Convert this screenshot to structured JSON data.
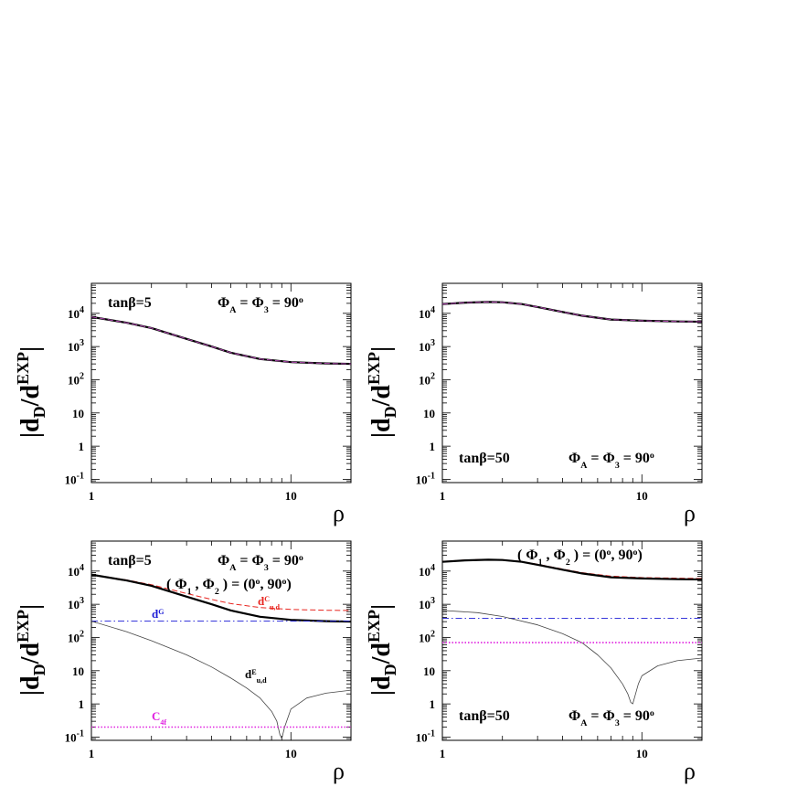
{
  "figure": {
    "ylabel_main": "|d",
    "ylabel_sub": "D",
    "ylabel_mid": "/d",
    "ylabel_sup": "EXP",
    "ylabel_end": "|",
    "xlabel": "ρ",
    "y_ticks": [
      {
        "value": 0.1,
        "base": "10",
        "exp": "-1"
      },
      {
        "value": 1,
        "base": "1",
        "exp": ""
      },
      {
        "value": 10,
        "base": "10",
        "exp": ""
      },
      {
        "value": 100,
        "base": "10",
        "exp": "2"
      },
      {
        "value": 1000,
        "base": "10",
        "exp": "3"
      },
      {
        "value": 10000,
        "base": "10",
        "exp": "4"
      }
    ],
    "x_ticks": [
      {
        "value": 1,
        "label": "1"
      },
      {
        "value": 10,
        "label": "10"
      }
    ]
  },
  "colors": {
    "total": "#000000",
    "dC": "#e8251f",
    "dG": "#1c1cd6",
    "dE": "#444444",
    "C4f": "#e020e0",
    "overlay": "#b048b0"
  },
  "chart_data": [
    {
      "type": "line",
      "panel": "top-left",
      "xscale": "log",
      "yscale": "log",
      "xlim": [
        1,
        20
      ],
      "ylim": [
        0.08,
        80000
      ],
      "annotations": {
        "tanb": "tanβ=5",
        "phi_main": "Φ",
        "phi_sub1": "A",
        "phi_mid": " = Φ",
        "phi_sub2": "3",
        "phi_tail": " = 90",
        "phi_deg": "o"
      },
      "series": [
        {
          "key": "total",
          "style": "solid-thick",
          "x": [
            1,
            1.5,
            2,
            3,
            4,
            5,
            7,
            10,
            15,
            20
          ],
          "y": [
            7800,
            5200,
            3600,
            1700,
            1000,
            650,
            420,
            340,
            310,
            300
          ]
        },
        {
          "key": "overlay",
          "style": "dashed",
          "x": [
            1,
            1.5,
            2,
            3,
            4,
            5,
            7,
            10,
            15,
            20
          ],
          "y": [
            7800,
            5200,
            3600,
            1700,
            1000,
            650,
            420,
            340,
            310,
            300
          ]
        }
      ]
    },
    {
      "type": "line",
      "panel": "top-right",
      "xscale": "log",
      "yscale": "log",
      "xlim": [
        1,
        20
      ],
      "ylim": [
        0.08,
        80000
      ],
      "annotations": {
        "tanb": "tanβ=50",
        "phi_main": "Φ",
        "phi_sub1": "A",
        "phi_mid": " = Φ",
        "phi_sub2": "3",
        "phi_tail": " = 90",
        "phi_deg": "o"
      },
      "series": [
        {
          "key": "total",
          "style": "solid-thick",
          "x": [
            1,
            1.3,
            1.7,
            2,
            2.5,
            3,
            4,
            5,
            7,
            10,
            15,
            20
          ],
          "y": [
            19000,
            21000,
            22000,
            21500,
            19000,
            15500,
            11000,
            8500,
            6500,
            6000,
            5700,
            5600
          ]
        },
        {
          "key": "overlay",
          "style": "dashed",
          "x": [
            1,
            1.3,
            1.7,
            2,
            2.5,
            3,
            4,
            5,
            7,
            10,
            15,
            20
          ],
          "y": [
            19000,
            21000,
            22000,
            21500,
            19000,
            15500,
            11000,
            8500,
            6500,
            6000,
            5700,
            5600
          ]
        }
      ]
    },
    {
      "type": "line",
      "panel": "bottom-left",
      "xscale": "log",
      "yscale": "log",
      "xlim": [
        1,
        20
      ],
      "ylim": [
        0.08,
        80000
      ],
      "annotations": {
        "tanb": "tanβ=5",
        "phi_main": "Φ",
        "phi_sub1": "A",
        "phi_mid": " = Φ",
        "phi_sub2": "3",
        "phi_tail": " = 90",
        "phi_deg": "o",
        "phi12_a": "( Φ",
        "phi12_s1": "1",
        "phi12_b": " , Φ",
        "phi12_s2": "2",
        "phi12_c": " ) = (0",
        "phi12_d": "o",
        "phi12_e": ", 90",
        "phi12_f": "o",
        "phi12_g": ")",
        "label_dG": "d",
        "label_dG_sup": "G",
        "label_dC": "d",
        "label_dC_sup": "C",
        "label_dC_sub": "u,d",
        "label_dE": "d",
        "label_dE_sup": "E",
        "label_dE_sub": "u,d",
        "label_C4f": "C",
        "label_C4f_sub": "4f"
      },
      "series": [
        {
          "key": "dC",
          "style": "dashed",
          "x": [
            1,
            1.5,
            2,
            3,
            4,
            5,
            7,
            10,
            15,
            20
          ],
          "y": [
            7900,
            5400,
            3900,
            2100,
            1400,
            1050,
            800,
            700,
            660,
            650
          ]
        },
        {
          "key": "total",
          "style": "solid-thick",
          "x": [
            1,
            1.5,
            2,
            3,
            4,
            5,
            7,
            10,
            15,
            20
          ],
          "y": [
            7800,
            5200,
            3600,
            1700,
            1000,
            650,
            420,
            340,
            310,
            300
          ]
        },
        {
          "key": "dG",
          "style": "dashdot",
          "x": [
            1,
            20
          ],
          "y": [
            310,
            310
          ]
        },
        {
          "key": "dE",
          "style": "solid-thin",
          "x": [
            1,
            1.5,
            2,
            3,
            4,
            5,
            6,
            7,
            8,
            8.5,
            8.8,
            9.0,
            9.3,
            10,
            12,
            15,
            20
          ],
          "y": [
            310,
            150,
            80,
            30,
            13,
            6,
            3,
            1.5,
            0.6,
            0.3,
            0.12,
            0.09,
            0.2,
            0.7,
            1.5,
            2.1,
            2.6
          ]
        },
        {
          "key": "C4f",
          "style": "dotted",
          "x": [
            1,
            20
          ],
          "y": [
            0.2,
            0.2
          ]
        }
      ]
    },
    {
      "type": "line",
      "panel": "bottom-right",
      "xscale": "log",
      "yscale": "log",
      "xlim": [
        1,
        20
      ],
      "ylim": [
        0.08,
        80000
      ],
      "annotations": {
        "tanb": "tanβ=50",
        "phi_main": "Φ",
        "phi_sub1": "A",
        "phi_mid": " = Φ",
        "phi_sub2": "3",
        "phi_tail": " = 90",
        "phi_deg": "o",
        "phi12_a": "( Φ",
        "phi12_s1": "1",
        "phi12_b": " , Φ",
        "phi12_s2": "2",
        "phi12_c": " ) = (0",
        "phi12_d": "o",
        "phi12_e": ", 90",
        "phi12_f": "o",
        "phi12_g": ")"
      },
      "series": [
        {
          "key": "dC",
          "style": "dashed",
          "x": [
            1,
            1.3,
            1.7,
            2,
            2.5,
            3,
            4,
            5,
            7,
            10,
            15,
            20
          ],
          "y": [
            19500,
            21500,
            22500,
            22000,
            19500,
            16000,
            11500,
            9000,
            7000,
            6400,
            6100,
            6000
          ]
        },
        {
          "key": "total",
          "style": "solid-thick",
          "x": [
            1,
            1.3,
            1.7,
            2,
            2.5,
            3,
            4,
            5,
            7,
            10,
            15,
            20
          ],
          "y": [
            19000,
            21000,
            22000,
            21500,
            19000,
            15500,
            11000,
            8500,
            6500,
            6000,
            5700,
            5600
          ]
        },
        {
          "key": "dG",
          "style": "dashdot",
          "x": [
            1,
            20
          ],
          "y": [
            380,
            380
          ]
        },
        {
          "key": "dE",
          "style": "solid-thin",
          "x": [
            1,
            1.5,
            2,
            3,
            4,
            5,
            6,
            7,
            8,
            8.5,
            8.8,
            9.0,
            9.2,
            9.6,
            10,
            12,
            15,
            20
          ],
          "y": [
            650,
            560,
            430,
            240,
            130,
            70,
            30,
            12,
            4,
            2,
            1.1,
            1.0,
            1.6,
            4,
            7,
            14,
            20,
            24
          ]
        },
        {
          "key": "C4f",
          "style": "dotted",
          "x": [
            1,
            20
          ],
          "y": [
            70,
            70
          ]
        }
      ]
    }
  ]
}
